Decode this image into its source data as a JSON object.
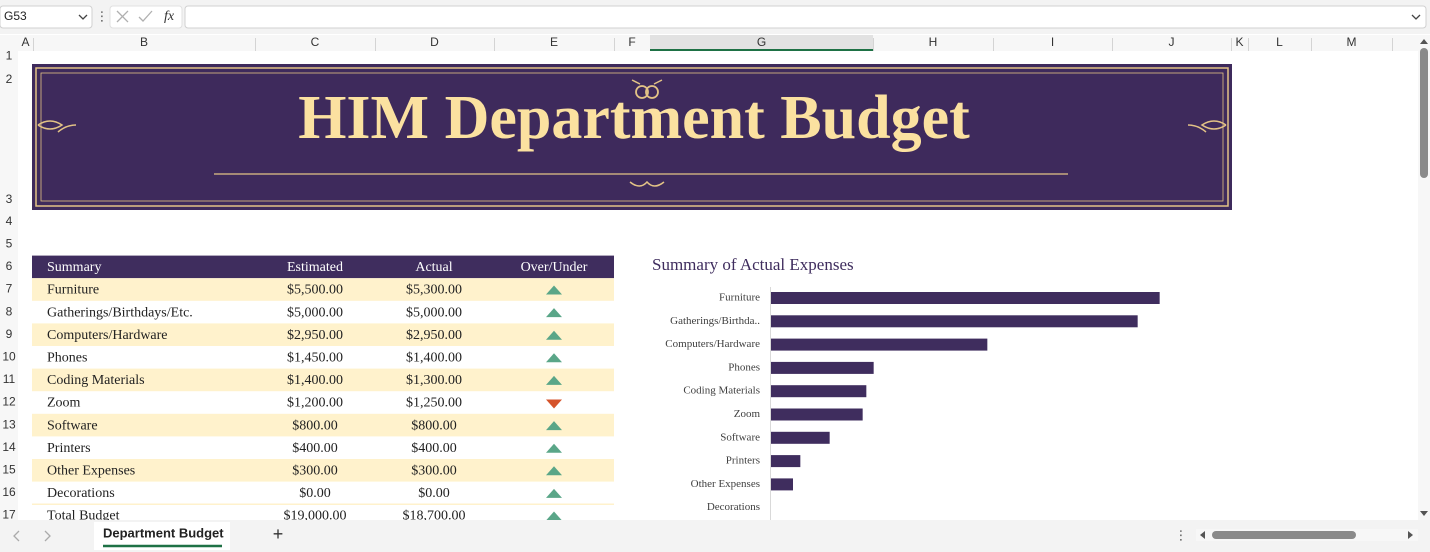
{
  "name_box": "G53",
  "function_label": "fx",
  "columns": [
    "A",
    "B",
    "C",
    "D",
    "E",
    "F",
    "G",
    "H",
    "I",
    "J",
    "K",
    "L",
    "M"
  ],
  "selected_column": "G",
  "rows": [
    1,
    2,
    3,
    4,
    5,
    6,
    7,
    8,
    9,
    10,
    11,
    12,
    13,
    14,
    15,
    16,
    17
  ],
  "banner": {
    "title": "HIM Department Budget"
  },
  "table": {
    "header": [
      "Summary",
      "Estimated",
      "Actual",
      "Over/Under"
    ],
    "rows": [
      [
        "Furniture",
        "$5,500.00",
        "$5,300.00",
        "up"
      ],
      [
        "Gatherings/Birthdays/Etc.",
        "$5,000.00",
        "$5,000.00",
        "up"
      ],
      [
        "Computers/Hardware",
        "$2,950.00",
        "$2,950.00",
        "up"
      ],
      [
        "Phones",
        "$1,450.00",
        "$1,400.00",
        "up"
      ],
      [
        "Coding Materials",
        "$1,400.00",
        "$1,300.00",
        "up"
      ],
      [
        "Zoom",
        "$1,200.00",
        "$1,250.00",
        "down"
      ],
      [
        "Software",
        "$800.00",
        "$800.00",
        "up"
      ],
      [
        "Printers",
        "$400.00",
        "$400.00",
        "up"
      ],
      [
        "Other Expenses",
        "$300.00",
        "$300.00",
        "up"
      ],
      [
        "Decorations",
        "$0.00",
        "$0.00",
        "up"
      ],
      [
        "Total Budget",
        "$19,000.00",
        "$18,700.00",
        "up"
      ]
    ]
  },
  "chart_data": {
    "type": "bar",
    "orientation": "horizontal",
    "title": "Summary of Actual Expenses",
    "categories": [
      "Furniture",
      "Gatherings/Birthda..",
      "Computers/Hardware",
      "Phones",
      "Coding Materials",
      "Zoom",
      "Software",
      "Printers",
      "Other Expenses",
      "Decorations"
    ],
    "values": [
      5300,
      5000,
      2950,
      1400,
      1300,
      1250,
      800,
      400,
      300,
      0
    ],
    "color": "#3f2d5e",
    "xlim": [
      0,
      6000
    ]
  },
  "sheet_tab": "Department Budget"
}
